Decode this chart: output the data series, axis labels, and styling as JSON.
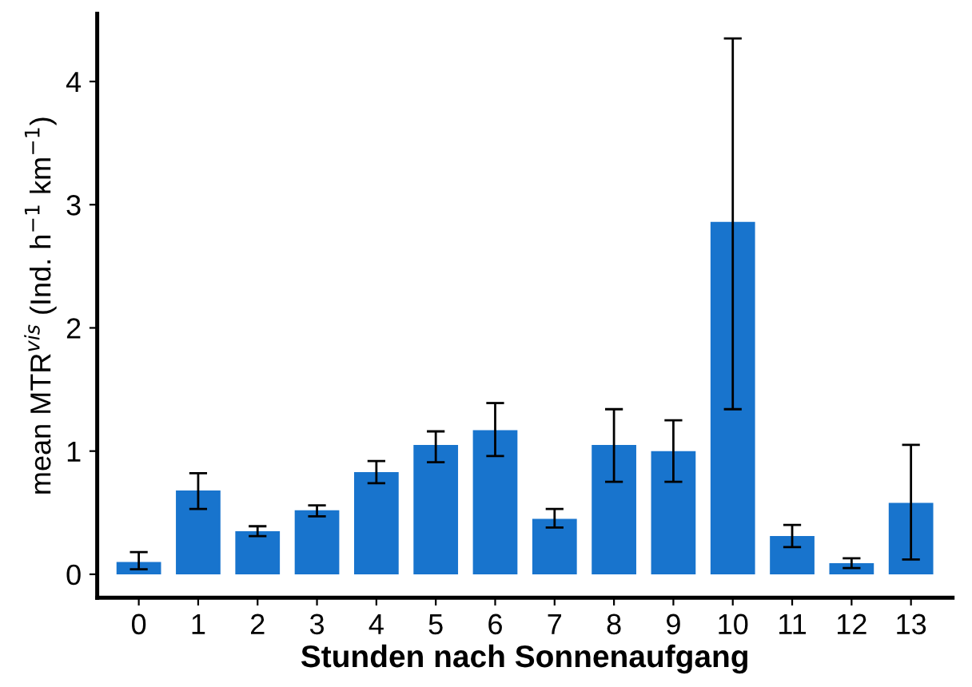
{
  "chart_data": {
    "type": "bar",
    "xlabel": "Stunden nach Sonnenaufgang",
    "ylabel": "mean MTR$^{vis}$ (Ind. h$^{−1}$ km$^{−1}$)",
    "categories": [
      "0",
      "1",
      "2",
      "3",
      "4",
      "5",
      "6",
      "7",
      "8",
      "9",
      "10",
      "11",
      "12",
      "13"
    ],
    "values": [
      0.1,
      0.68,
      0.35,
      0.52,
      0.83,
      1.05,
      1.17,
      0.45,
      1.05,
      1.0,
      2.86,
      0.31,
      0.09,
      0.58
    ],
    "errors": [
      [
        0.04,
        0.18
      ],
      [
        0.53,
        0.82
      ],
      [
        0.31,
        0.39
      ],
      [
        0.47,
        0.56
      ],
      [
        0.74,
        0.92
      ],
      [
        0.91,
        1.16
      ],
      [
        0.96,
        1.39
      ],
      [
        0.38,
        0.53
      ],
      [
        0.75,
        1.34
      ],
      [
        0.75,
        1.25
      ],
      [
        1.34,
        4.35
      ],
      [
        0.22,
        0.4
      ],
      [
        0.05,
        0.13
      ],
      [
        0.12,
        1.05
      ]
    ],
    "color": "#1874cd",
    "ylim": [
      -0.19,
      4.55
    ],
    "yticks": [
      0,
      1,
      2,
      3,
      4
    ],
    "grid": false,
    "legend": false
  }
}
